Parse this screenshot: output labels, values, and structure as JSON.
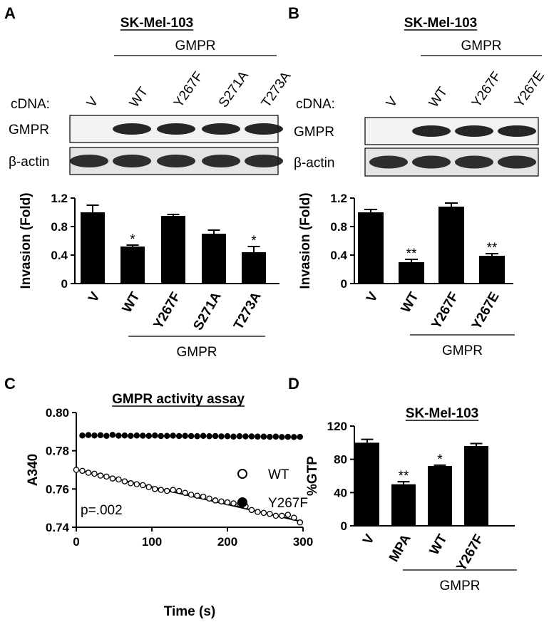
{
  "panels": [
    "A",
    "B",
    "C",
    "D"
  ],
  "blots": [
    {
      "title": "SK-Mel-103",
      "group_label": "GMPR",
      "cdna_label": "cDNA:",
      "lanes": [
        "V",
        "WT",
        "Y267F",
        "S271A",
        "T273A"
      ],
      "rows": [
        "GMPR",
        "β-actin"
      ]
    },
    {
      "title": "SK-Mel-103",
      "group_label": "GMPR",
      "cdna_label": "cDNA:",
      "lanes": [
        "V",
        "WT",
        "Y267F",
        "Y267E"
      ],
      "rows": [
        "GMPR",
        "β-actin"
      ]
    }
  ],
  "chart_data": [
    {
      "type": "bar",
      "ylabel": "Invasion (Fold)",
      "categories": [
        "V",
        "WT",
        "Y267F",
        "S271A",
        "T273A"
      ],
      "values": [
        1.0,
        0.52,
        0.95,
        0.7,
        0.44
      ],
      "errors": [
        0.1,
        0.02,
        0.02,
        0.05,
        0.08
      ],
      "annotations": [
        null,
        "*",
        null,
        null,
        "*"
      ],
      "color": "#000000",
      "ylim": [
        0,
        1.2
      ],
      "yticks": [
        0,
        0.4,
        0.8,
        1.2
      ],
      "group_label": "GMPR"
    },
    {
      "type": "bar",
      "ylabel": "Invasion (Fold)",
      "categories": [
        "V",
        "WT",
        "Y267F",
        "Y267E"
      ],
      "values": [
        1.0,
        0.3,
        1.08,
        0.39
      ],
      "errors": [
        0.04,
        0.04,
        0.05,
        0.03
      ],
      "annotations": [
        null,
        "**",
        null,
        "**"
      ],
      "color": "#000000",
      "ylim": [
        0,
        1.2
      ],
      "yticks": [
        0,
        0.4,
        0.8,
        1.2
      ],
      "group_label": "GMPR"
    },
    {
      "type": "scatter",
      "title": "GMPR activity assay",
      "xlabel": "Time (s)",
      "ylabel": "A340",
      "xlim": [
        0,
        300
      ],
      "xticks": [
        0,
        100,
        200,
        300
      ],
      "ylim": [
        0.74,
        0.8
      ],
      "yticks": [
        0.74,
        0.76,
        0.78,
        {
          "value": 0.8,
          "label": "0.80"
        }
      ],
      "annotation": "p=.002",
      "legend": "right",
      "series": [
        {
          "name": "WT",
          "color": "#000000",
          "marker": "open",
          "x": [
            0,
            8,
            16,
            24,
            32,
            40,
            48,
            56,
            64,
            72,
            80,
            88,
            96,
            104,
            112,
            120,
            128,
            136,
            144,
            152,
            160,
            168,
            176,
            184,
            192,
            200,
            208,
            216,
            224,
            232,
            240,
            248,
            256,
            264,
            272,
            280,
            288,
            296
          ],
          "values": [
            0.77,
            0.7695,
            0.7685,
            0.768,
            0.767,
            0.7665,
            0.7655,
            0.765,
            0.764,
            0.763,
            0.7625,
            0.762,
            0.761,
            0.76,
            0.7595,
            0.759,
            0.7595,
            0.759,
            0.758,
            0.757,
            0.7565,
            0.756,
            0.755,
            0.754,
            0.7535,
            0.753,
            0.7525,
            0.752,
            0.751,
            0.749,
            0.748,
            0.7475,
            0.747,
            0.746,
            0.746,
            0.7465,
            0.745,
            0.7425
          ]
        },
        {
          "name": "Y267F",
          "color": "#000000",
          "marker": "filled",
          "x": [
            8,
            16,
            24,
            32,
            40,
            48,
            56,
            64,
            72,
            80,
            88,
            96,
            104,
            112,
            120,
            128,
            136,
            144,
            152,
            160,
            168,
            176,
            184,
            192,
            200,
            208,
            216,
            224,
            232,
            240,
            248,
            256,
            264,
            272,
            280,
            288,
            296
          ],
          "values": [
            0.788,
            0.7882,
            0.788,
            0.7881,
            0.7878,
            0.7883,
            0.7879,
            0.788,
            0.7878,
            0.788,
            0.7879,
            0.7878,
            0.788,
            0.7877,
            0.7878,
            0.7879,
            0.7877,
            0.7878,
            0.7877,
            0.7876,
            0.7878,
            0.7876,
            0.7877,
            0.7875,
            0.7876,
            0.7874,
            0.7876,
            0.7875,
            0.7875,
            0.7874,
            0.7874,
            0.7873,
            0.7874,
            0.7872,
            0.7873,
            0.7872,
            0.7873
          ]
        }
      ],
      "trendline": {
        "x": [
          0,
          300
        ],
        "values": [
          0.7702,
          0.7428
        ]
      }
    },
    {
      "type": "bar",
      "title": "SK-Mel-103",
      "ylabel": "%GTP",
      "categories": [
        "V",
        "MPA",
        "WT",
        "Y267F"
      ],
      "values": [
        100,
        50,
        72,
        96
      ],
      "errors": [
        4,
        3,
        1,
        3
      ],
      "annotations": [
        null,
        "**",
        "*",
        null
      ],
      "color": "#000000",
      "ylim": [
        0,
        120
      ],
      "yticks": [
        0,
        40,
        80,
        120
      ],
      "group_label": "GMPR"
    }
  ]
}
